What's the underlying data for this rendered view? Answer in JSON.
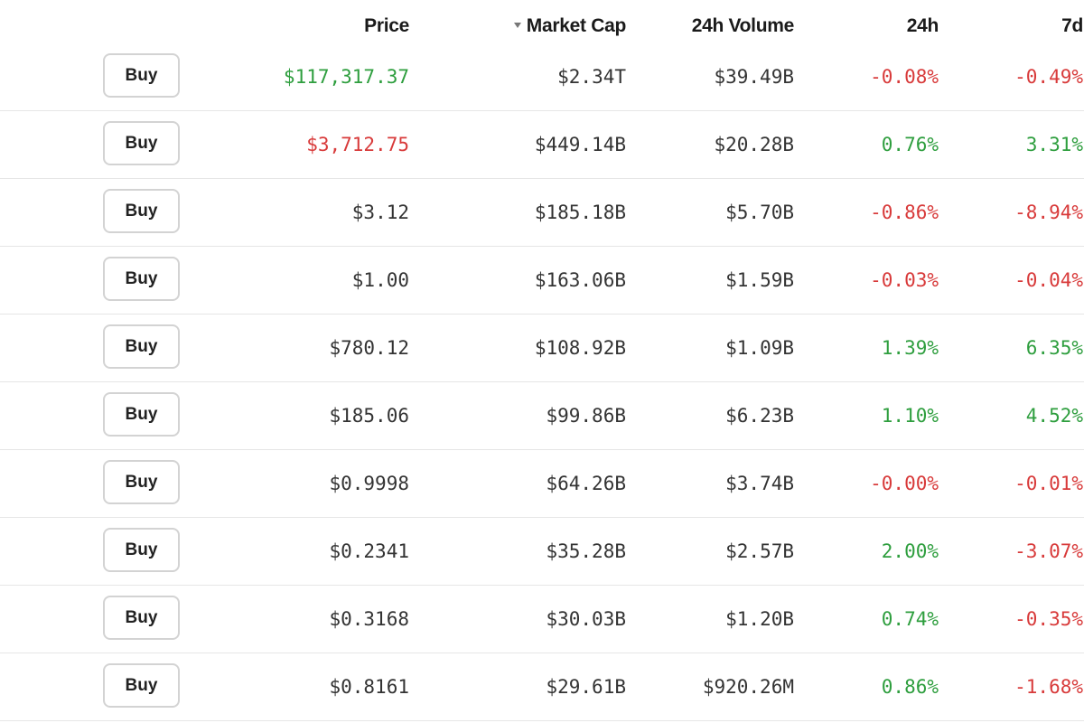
{
  "headers": {
    "price": "Price",
    "market_cap": "Market Cap",
    "volume_24h": "24h Volume",
    "change_24h": "24h",
    "change_7d": "7d"
  },
  "sort": {
    "column": "Market Cap",
    "direction": "descending",
    "icon": "sort-down-icon"
  },
  "colors": {
    "positive": "#2e9e3e",
    "negative": "#d83a3a",
    "neutral": "#333333"
  },
  "rows": [
    {
      "buy_label": "Buy",
      "price": "$117,317.37",
      "price_trend": "pos",
      "market_cap": "$2.34T",
      "volume_24h": "$39.49B",
      "change_24h": "-0.08%",
      "change_7d": "-0.49%"
    },
    {
      "buy_label": "Buy",
      "price": "$3,712.75",
      "price_trend": "neg",
      "market_cap": "$449.14B",
      "volume_24h": "$20.28B",
      "change_24h": "0.76%",
      "change_7d": "3.31%"
    },
    {
      "buy_label": "Buy",
      "price": "$3.12",
      "price_trend": "neutral",
      "market_cap": "$185.18B",
      "volume_24h": "$5.70B",
      "change_24h": "-0.86%",
      "change_7d": "-8.94%"
    },
    {
      "buy_label": "Buy",
      "price": "$1.00",
      "price_trend": "neutral",
      "market_cap": "$163.06B",
      "volume_24h": "$1.59B",
      "change_24h": "-0.03%",
      "change_7d": "-0.04%"
    },
    {
      "buy_label": "Buy",
      "price": "$780.12",
      "price_trend": "neutral",
      "market_cap": "$108.92B",
      "volume_24h": "$1.09B",
      "change_24h": "1.39%",
      "change_7d": "6.35%"
    },
    {
      "buy_label": "Buy",
      "price": "$185.06",
      "price_trend": "neutral",
      "market_cap": "$99.86B",
      "volume_24h": "$6.23B",
      "change_24h": "1.10%",
      "change_7d": "4.52%"
    },
    {
      "buy_label": "Buy",
      "price": "$0.9998",
      "price_trend": "neutral",
      "market_cap": "$64.26B",
      "volume_24h": "$3.74B",
      "change_24h": "-0.00%",
      "change_7d": "-0.01%"
    },
    {
      "buy_label": "Buy",
      "price": "$0.2341",
      "price_trend": "neutral",
      "market_cap": "$35.28B",
      "volume_24h": "$2.57B",
      "change_24h": "2.00%",
      "change_7d": "-3.07%"
    },
    {
      "buy_label": "Buy",
      "price": "$0.3168",
      "price_trend": "neutral",
      "market_cap": "$30.03B",
      "volume_24h": "$1.20B",
      "change_24h": "0.74%",
      "change_7d": "-0.35%"
    },
    {
      "buy_label": "Buy",
      "price": "$0.8161",
      "price_trend": "neutral",
      "market_cap": "$29.61B",
      "volume_24h": "$920.26M",
      "change_24h": "0.86%",
      "change_7d": "-1.68%"
    }
  ]
}
